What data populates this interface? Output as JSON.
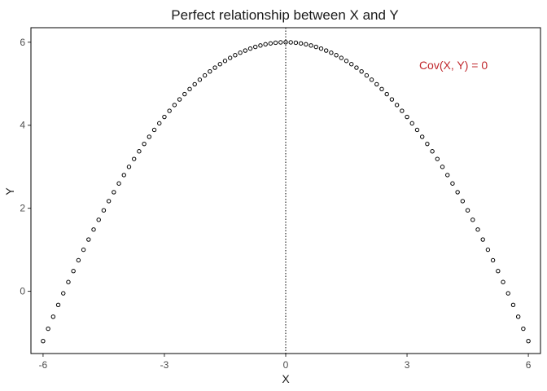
{
  "chart_data": {
    "type": "scatter",
    "title": "Perfect relationship between X and Y",
    "xlabel": "X",
    "ylabel": "Y",
    "xlim": [
      -6.3,
      6.3
    ],
    "ylim": [
      -1.5,
      6.35
    ],
    "x_ticks": [
      -6,
      -3,
      0,
      3,
      6
    ],
    "x_tick_labels": [
      "-6",
      "-3",
      "0",
      "3",
      "6"
    ],
    "y_ticks": [
      0,
      2,
      4,
      6
    ],
    "y_tick_labels": [
      "0",
      "2",
      "4",
      "6"
    ],
    "grid": false,
    "reference_line": {
      "x": 0,
      "style": "dotted"
    },
    "relationship": "Y = 6 - X^2 / 5",
    "x_range": [
      -6,
      6
    ],
    "x_step": 0.125,
    "annotation": {
      "text": "Cov(X, Y) = 0",
      "x": 3.3,
      "y": 5.45,
      "color": "#c0282d"
    },
    "colors": {
      "point_stroke": "#000000",
      "axis": "#000000",
      "annotation": "#c0282d"
    }
  }
}
